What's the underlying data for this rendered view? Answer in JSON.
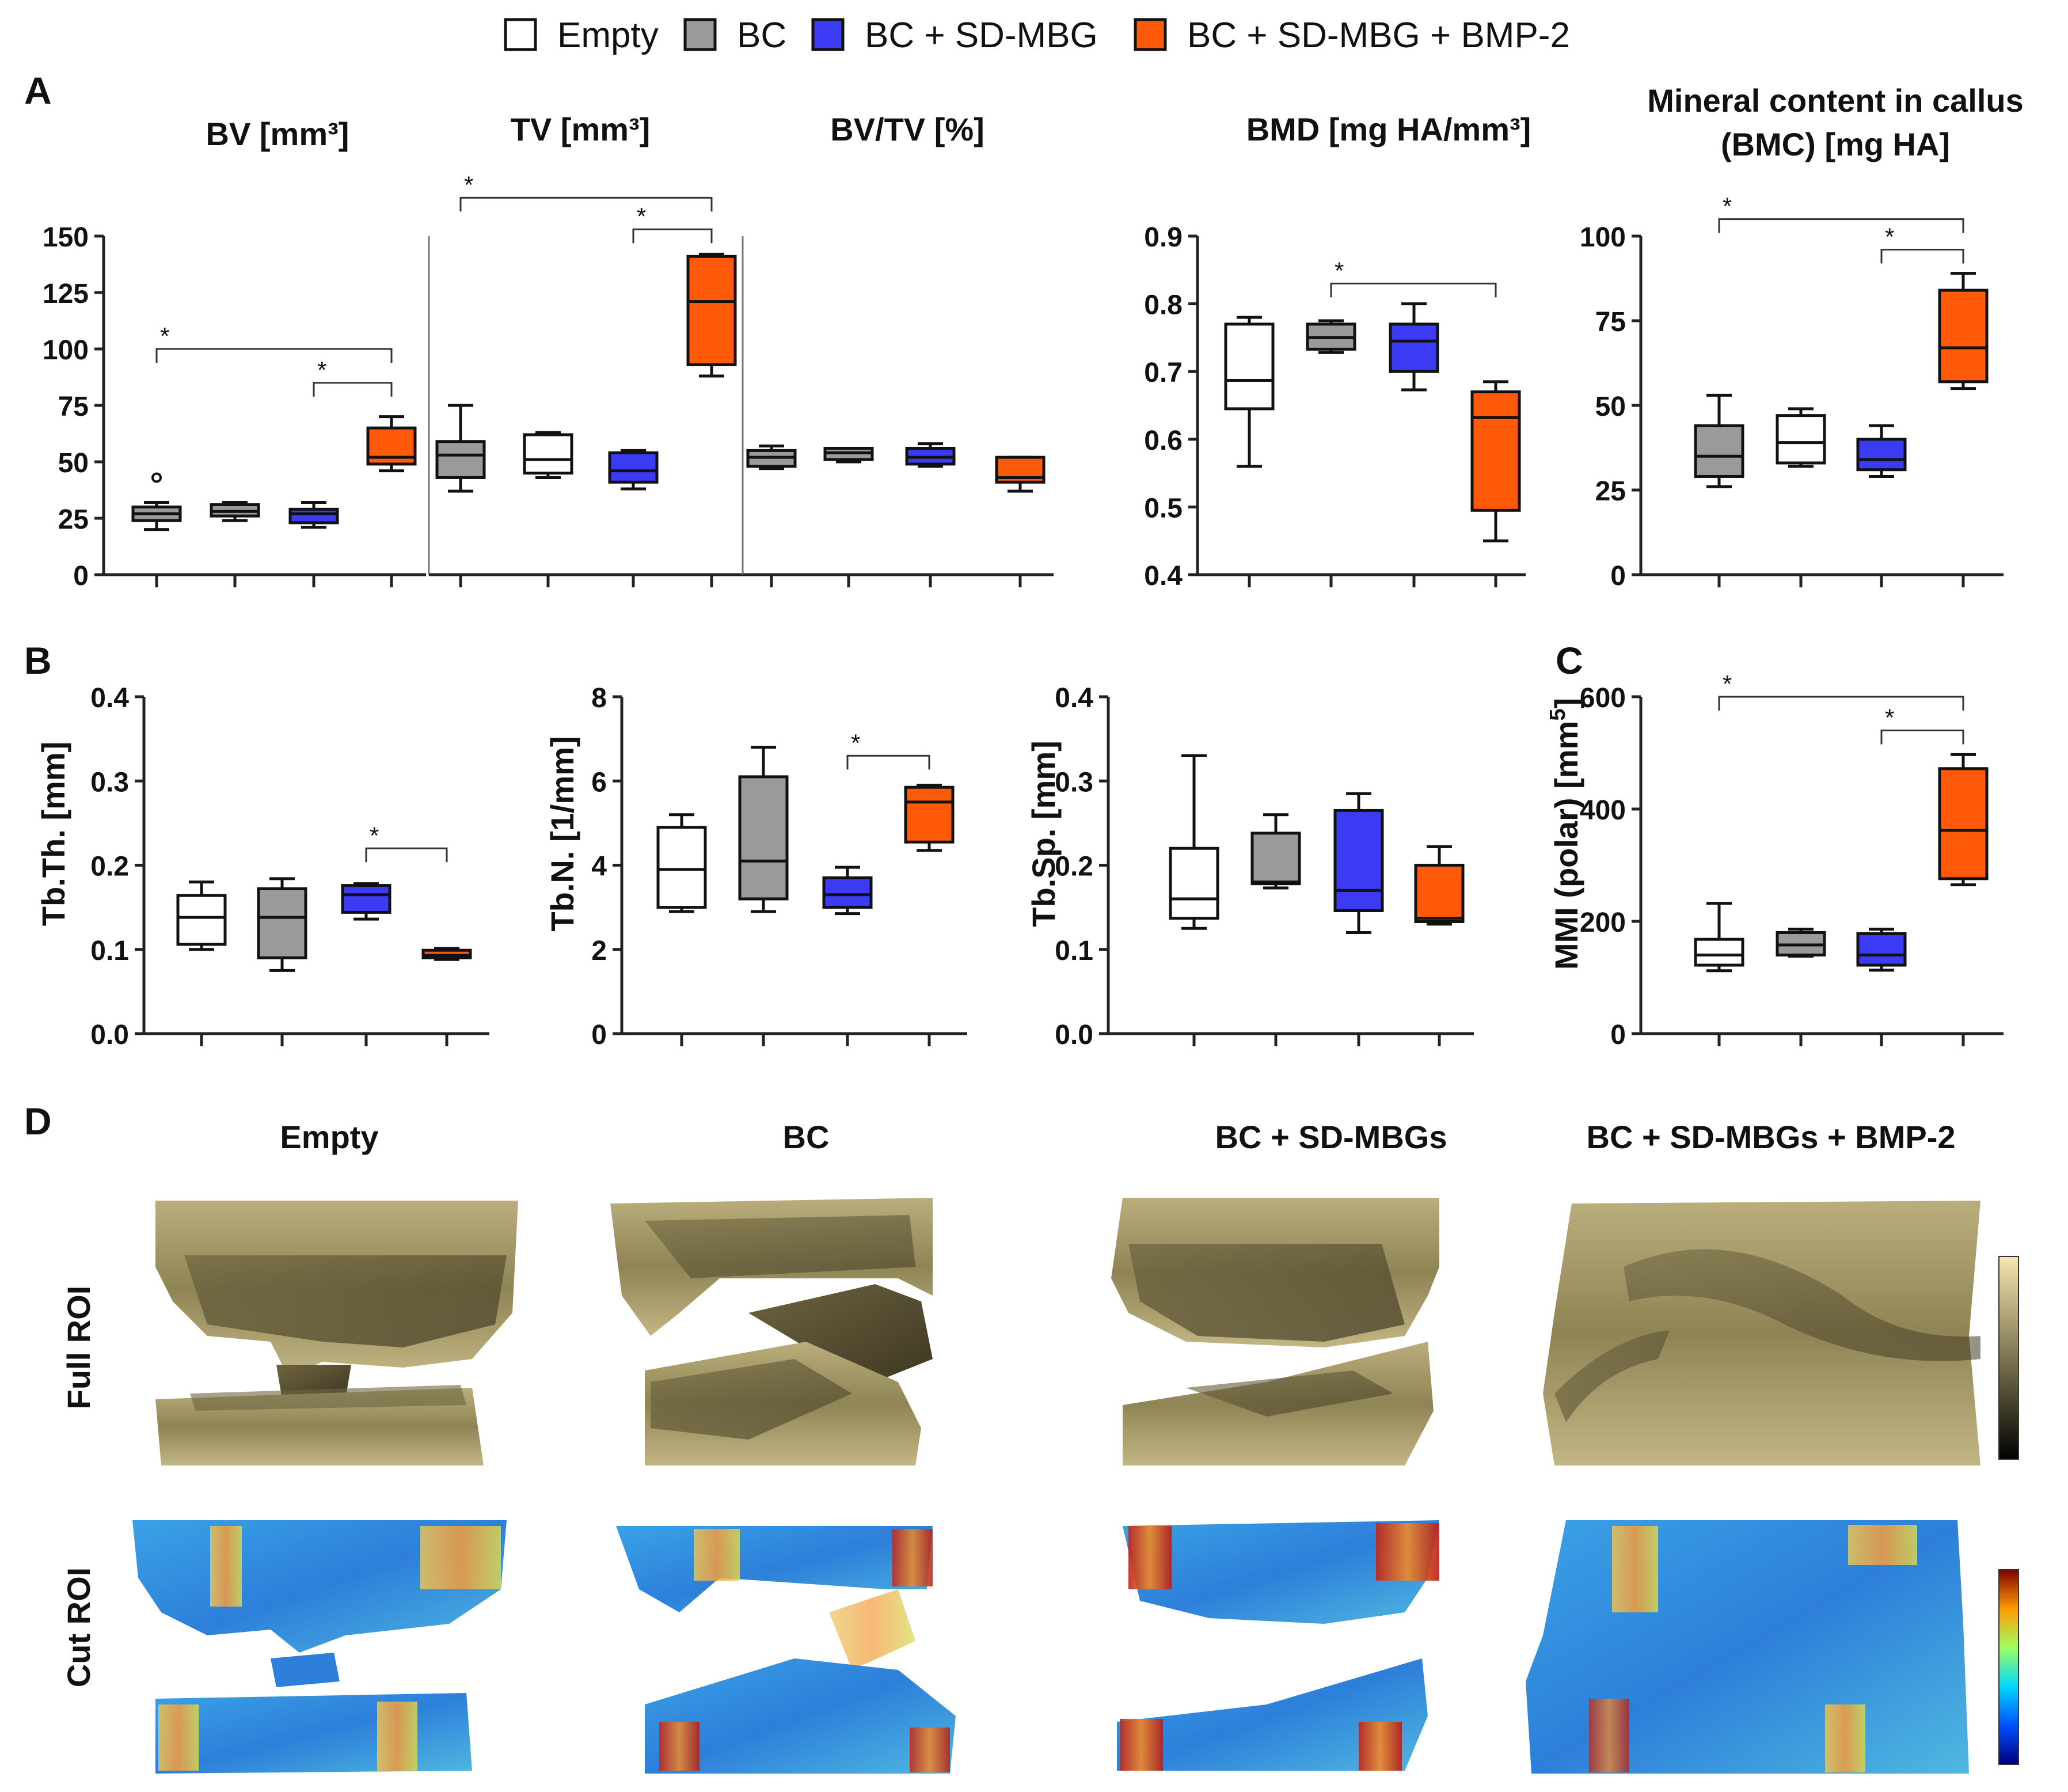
{
  "legend": [
    {
      "label": "Empty",
      "color": "#ffffff"
    },
    {
      "label": "BC",
      "color": "#9a9a9a"
    },
    {
      "label": "BC + SD-MBG",
      "color": "#3b3bf3"
    },
    {
      "label": "BC + SD-MBG + BMP-2",
      "color": "#ff5a0a"
    }
  ],
  "panel_letters": {
    "a": "A",
    "b": "B",
    "c": "C",
    "d": "D"
  },
  "colors": {
    "empty": "#ffffff",
    "bc": "#9a9a9a",
    "mbg": "#3b3bf3",
    "bmp": "#ff5a0a",
    "axis": "#222222",
    "bone": "#a89d6a"
  },
  "chart_data": [
    {
      "id": "bv",
      "type": "box",
      "title": "BV [mm³]",
      "ylabel": "",
      "ylim": [
        0,
        150
      ],
      "ticks": [
        0,
        25,
        50,
        75,
        100,
        125,
        150
      ],
      "groups": [
        {
          "color": "bc",
          "min": 20,
          "q1": 24,
          "median": 27,
          "q3": 30,
          "max": 32,
          "outliers": [
            43
          ]
        },
        {
          "color": "bc",
          "min": 24,
          "q1": 26,
          "median": 28,
          "q3": 31,
          "max": 32,
          "outliers": []
        },
        {
          "color": "mbg",
          "min": 21,
          "q1": 23,
          "median": 27,
          "q3": 29,
          "max": 32,
          "outliers": []
        },
        {
          "color": "bmp",
          "min": 46,
          "q1": 49,
          "median": 52,
          "q3": 65,
          "max": 70,
          "outliers": []
        }
      ],
      "sig": [
        {
          "from": 0,
          "to": 3,
          "label": "*",
          "y": 100
        },
        {
          "from": 2,
          "to": 3,
          "label": "*",
          "y": 85
        }
      ]
    },
    {
      "id": "tv",
      "type": "box",
      "title": "TV [mm³]",
      "ylabel": "",
      "ylim": [
        0,
        150
      ],
      "ticks": [],
      "groups": [
        {
          "color": "bc",
          "min": 37,
          "q1": 43,
          "median": 53,
          "q3": 59,
          "max": 75,
          "outliers": []
        },
        {
          "color": "empty",
          "min": 43,
          "q1": 45,
          "median": 51,
          "q3": 62,
          "max": 63,
          "outliers": []
        },
        {
          "color": "mbg",
          "min": 38,
          "q1": 41,
          "median": 46,
          "q3": 54,
          "max": 55,
          "outliers": []
        },
        {
          "color": "bmp",
          "min": 88,
          "q1": 93,
          "median": 121,
          "q3": 141,
          "max": 142,
          "outliers": []
        }
      ],
      "sig": [
        {
          "from": 0,
          "to": 3,
          "label": "*",
          "y": 167
        },
        {
          "from": 2,
          "to": 3,
          "label": "*",
          "y": 153
        }
      ]
    },
    {
      "id": "bvtv",
      "type": "box",
      "title": "BV/TV [%]",
      "ylabel": "",
      "ylim": [
        0,
        150
      ],
      "ticks": [],
      "groups": [
        {
          "color": "bc",
          "min": 47,
          "q1": 48,
          "median": 52,
          "q3": 55,
          "max": 57,
          "outliers": []
        },
        {
          "color": "bc",
          "min": 50,
          "q1": 51,
          "median": 54,
          "q3": 56,
          "max": 56,
          "outliers": []
        },
        {
          "color": "mbg",
          "min": 48,
          "q1": 49,
          "median": 52,
          "q3": 56,
          "max": 58,
          "outliers": []
        },
        {
          "color": "bmp",
          "min": 37,
          "q1": 41,
          "median": 43,
          "q3": 52,
          "max": 52,
          "outliers": []
        }
      ],
      "sig": []
    },
    {
      "id": "bmd",
      "type": "box",
      "title": "BMD [mg HA/mm³]",
      "ylabel": "",
      "ylim": [
        0.4,
        0.9
      ],
      "ticks": [
        "0.4",
        "0.5",
        "0.6",
        "0.7",
        "0.8",
        "0.9"
      ],
      "groups": [
        {
          "color": "empty",
          "min": 0.56,
          "q1": 0.645,
          "median": 0.687,
          "q3": 0.77,
          "max": 0.78,
          "outliers": []
        },
        {
          "color": "bc",
          "min": 0.728,
          "q1": 0.733,
          "median": 0.75,
          "q3": 0.77,
          "max": 0.775,
          "outliers": []
        },
        {
          "color": "mbg",
          "min": 0.673,
          "q1": 0.7,
          "median": 0.745,
          "q3": 0.77,
          "max": 0.8,
          "outliers": []
        },
        {
          "color": "bmp",
          "min": 0.45,
          "q1": 0.495,
          "median": 0.632,
          "q3": 0.67,
          "max": 0.685,
          "outliers": []
        }
      ],
      "sig": [
        {
          "from": 1,
          "to": 3,
          "label": "*",
          "y": 0.83
        }
      ]
    },
    {
      "id": "bmc",
      "type": "box",
      "title": "Mineral content in callus",
      "title2": "(BMC) [mg HA]",
      "ylabel": "",
      "ylim": [
        0,
        100
      ],
      "ticks": [
        0,
        25,
        50,
        75,
        100
      ],
      "groups": [
        {
          "color": "bc",
          "min": 26,
          "q1": 29,
          "median": 35,
          "q3": 44,
          "max": 53,
          "outliers": []
        },
        {
          "color": "empty",
          "min": 32,
          "q1": 33,
          "median": 39,
          "q3": 47,
          "max": 49,
          "outliers": []
        },
        {
          "color": "mbg",
          "min": 29,
          "q1": 31,
          "median": 34,
          "q3": 40,
          "max": 44,
          "outliers": []
        },
        {
          "color": "bmp",
          "min": 55,
          "q1": 57,
          "median": 67,
          "q3": 84,
          "max": 89,
          "outliers": []
        }
      ],
      "sig": [
        {
          "from": 0,
          "to": 3,
          "label": "*",
          "y": 105
        },
        {
          "from": 2,
          "to": 3,
          "label": "*",
          "y": 96
        }
      ]
    },
    {
      "id": "tbth",
      "type": "box",
      "title": "",
      "ylabel": "Tb.Th. [mm]",
      "ylim": [
        0,
        0.4
      ],
      "ticks": [
        "0.0",
        "0.1",
        "0.2",
        "0.3",
        "0.4"
      ],
      "groups": [
        {
          "color": "empty",
          "min": 0.1,
          "q1": 0.106,
          "median": 0.138,
          "q3": 0.164,
          "max": 0.18,
          "outliers": []
        },
        {
          "color": "bc",
          "min": 0.075,
          "q1": 0.09,
          "median": 0.138,
          "q3": 0.172,
          "max": 0.184,
          "outliers": []
        },
        {
          "color": "mbg",
          "min": 0.136,
          "q1": 0.144,
          "median": 0.165,
          "q3": 0.176,
          "max": 0.178,
          "outliers": []
        },
        {
          "color": "bmp",
          "min": 0.088,
          "q1": 0.09,
          "median": 0.093,
          "q3": 0.099,
          "max": 0.101,
          "outliers": []
        }
      ],
      "sig": [
        {
          "from": 2,
          "to": 3,
          "label": "*",
          "y": 0.22
        }
      ]
    },
    {
      "id": "tbn",
      "type": "box",
      "title": "",
      "ylabel": "Tb.N. [1/mm]",
      "ylim": [
        0,
        8
      ],
      "ticks": [
        0,
        2,
        4,
        6,
        8
      ],
      "groups": [
        {
          "color": "empty",
          "min": 2.9,
          "q1": 3.0,
          "median": 3.9,
          "q3": 4.9,
          "max": 5.2,
          "outliers": []
        },
        {
          "color": "bc",
          "min": 2.9,
          "q1": 3.2,
          "median": 4.1,
          "q3": 6.1,
          "max": 6.8,
          "outliers": []
        },
        {
          "color": "mbg",
          "min": 2.85,
          "q1": 3.0,
          "median": 3.3,
          "q3": 3.7,
          "max": 3.95,
          "outliers": []
        },
        {
          "color": "bmp",
          "min": 4.35,
          "q1": 4.55,
          "median": 5.5,
          "q3": 5.85,
          "max": 5.9,
          "outliers": []
        }
      ],
      "sig": [
        {
          "from": 2,
          "to": 3,
          "label": "*",
          "y": 6.6
        }
      ]
    },
    {
      "id": "tbsp",
      "type": "box",
      "title": "",
      "ylabel": "Tb.Sp. [mm]",
      "ylim": [
        0,
        0.4
      ],
      "ticks": [
        "0.0",
        "0.1",
        "0.2",
        "0.3",
        "0.4"
      ],
      "groups": [
        {
          "color": "empty",
          "min": 0.125,
          "q1": 0.137,
          "median": 0.16,
          "q3": 0.22,
          "max": 0.33,
          "outliers": []
        },
        {
          "color": "bc",
          "min": 0.173,
          "q1": 0.178,
          "median": 0.18,
          "q3": 0.238,
          "max": 0.26,
          "outliers": []
        },
        {
          "color": "mbg",
          "min": 0.12,
          "q1": 0.146,
          "median": 0.17,
          "q3": 0.265,
          "max": 0.285,
          "outliers": []
        },
        {
          "color": "bmp",
          "min": 0.13,
          "q1": 0.133,
          "median": 0.137,
          "q3": 0.2,
          "max": 0.222,
          "outliers": []
        }
      ],
      "sig": []
    },
    {
      "id": "mmi",
      "type": "box",
      "title": "",
      "ylabel": "MMI (polar) [mm",
      "ylabel_sup": "5",
      "ylabel_end": "]",
      "ylim": [
        0,
        600
      ],
      "ticks": [
        0,
        200,
        400,
        600
      ],
      "groups": [
        {
          "color": "empty",
          "min": 112,
          "q1": 122,
          "median": 140,
          "q3": 168,
          "max": 232,
          "outliers": []
        },
        {
          "color": "bc",
          "min": 138,
          "q1": 140,
          "median": 158,
          "q3": 180,
          "max": 186,
          "outliers": []
        },
        {
          "color": "mbg",
          "min": 113,
          "q1": 122,
          "median": 140,
          "q3": 178,
          "max": 186,
          "outliers": []
        },
        {
          "color": "bmp",
          "min": 265,
          "q1": 276,
          "median": 362,
          "q3": 472,
          "max": 497,
          "outliers": []
        }
      ],
      "sig": [
        {
          "from": 0,
          "to": 3,
          "label": "*",
          "y": 600
        },
        {
          "from": 2,
          "to": 3,
          "label": "*",
          "y": 540
        }
      ]
    }
  ],
  "panel_d": {
    "columns": [
      "Empty",
      "BC",
      "BC + SD-MBGs",
      "BC + SD-MBGs + BMP-2"
    ],
    "rows": [
      "Full ROI",
      "Cut ROI"
    ]
  }
}
